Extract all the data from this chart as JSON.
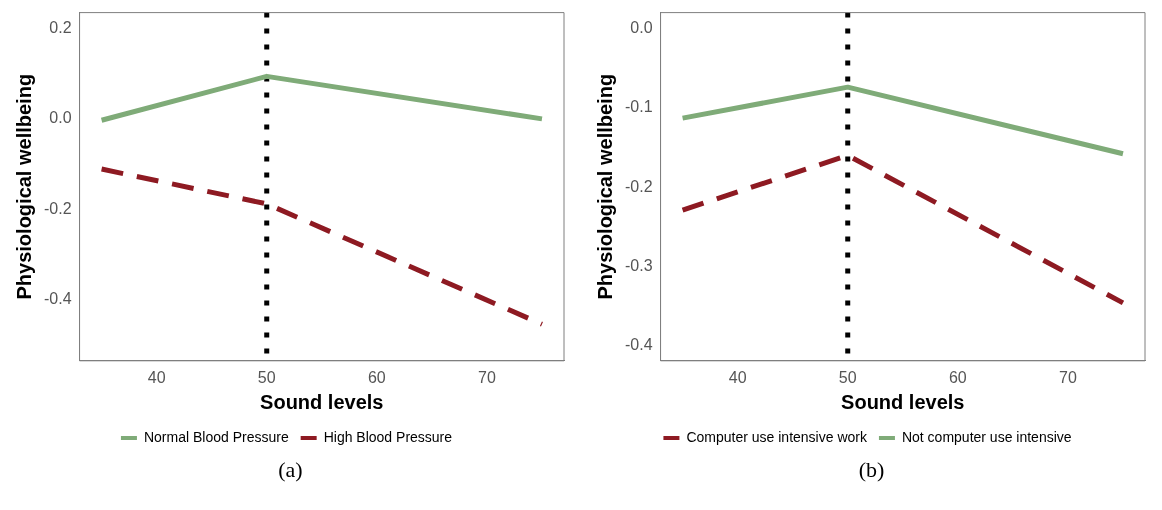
{
  "chart_data": [
    {
      "type": "line",
      "xlabel": "Sound levels",
      "ylabel": "Physiological wellbeing",
      "xlim": [
        33,
        77
      ],
      "ylim": [
        -0.535,
        0.235
      ],
      "xticks": [
        40,
        50,
        60,
        70
      ],
      "yticks": [
        0.2,
        {
          "value": 0,
          "label": "0.0"
        },
        -0.2,
        -0.4
      ],
      "x": [
        35,
        50,
        75
      ],
      "legend": "bottom",
      "series": [
        {
          "name": "Normal Blood Pressure",
          "color": "#7fab78",
          "line_style": "solid",
          "values": [
            -0.003,
            0.094,
            0.0
          ]
        },
        {
          "name": "High Blood Pressure",
          "color": "#8e1a22",
          "line_style": "dashed",
          "values": [
            -0.111,
            -0.188,
            -0.454
          ]
        }
      ],
      "ref_lines": [
        {
          "axis": "x",
          "value": 50,
          "color": "#000000",
          "line_style": "dotted"
        }
      ],
      "annotations": [
        "(a)"
      ]
    },
    {
      "type": "line",
      "xlabel": "Sound levels",
      "ylabel": "Physiological wellbeing",
      "xlim": [
        33,
        77
      ],
      "ylim": [
        -0.419,
        0.02
      ],
      "xticks": [
        40,
        50,
        60,
        70
      ],
      "yticks": [
        {
          "value": 0,
          "label": "0.0"
        },
        -0.1,
        -0.2,
        -0.3,
        -0.4
      ],
      "x": [
        35,
        50,
        75
      ],
      "legend": "bottom",
      "series": [
        {
          "name": "Computer use intensive work",
          "color": "#8e1a22",
          "line_style": "dashed",
          "values": [
            -0.229,
            -0.16,
            -0.346
          ]
        },
        {
          "name": "Not computer use intensive",
          "color": "#7fab78",
          "line_style": "solid",
          "values": [
            -0.113,
            -0.074,
            -0.158
          ]
        }
      ],
      "ref_lines": [
        {
          "axis": "x",
          "value": 50,
          "color": "#000000",
          "line_style": "dotted"
        }
      ],
      "annotations": [
        "(b)"
      ]
    }
  ]
}
